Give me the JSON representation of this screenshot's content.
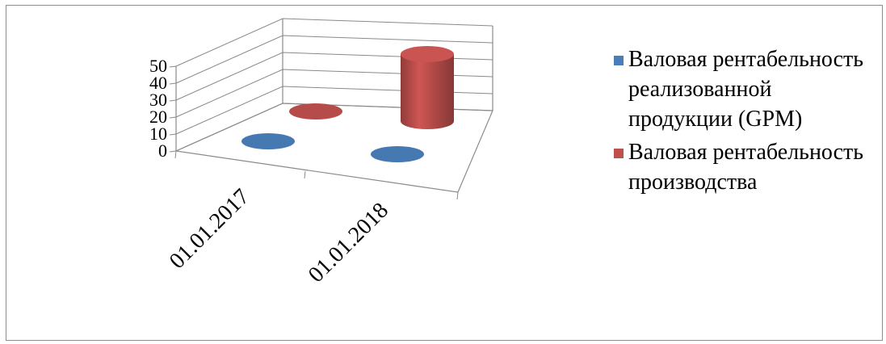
{
  "chart_data": {
    "type": "bar",
    "subtype": "3d-cylinder",
    "title": "",
    "xlabel": "",
    "ylabel": "",
    "ylim": [
      0,
      50
    ],
    "yticks": [
      "0",
      "10",
      "20",
      "30",
      "40",
      "50"
    ],
    "categories": [
      "01.01.2017",
      "01.01.2018"
    ],
    "series": [
      {
        "name": "Валовая рентабельность реализованной продукции (GPM)",
        "color": "#4a7ebb",
        "values": [
          0.2,
          0.4
        ]
      },
      {
        "name": "Валовая рентабельность производства",
        "color": "#c0504d",
        "values": [
          0.3,
          40
        ]
      }
    ],
    "legend": "right",
    "grid": true
  }
}
